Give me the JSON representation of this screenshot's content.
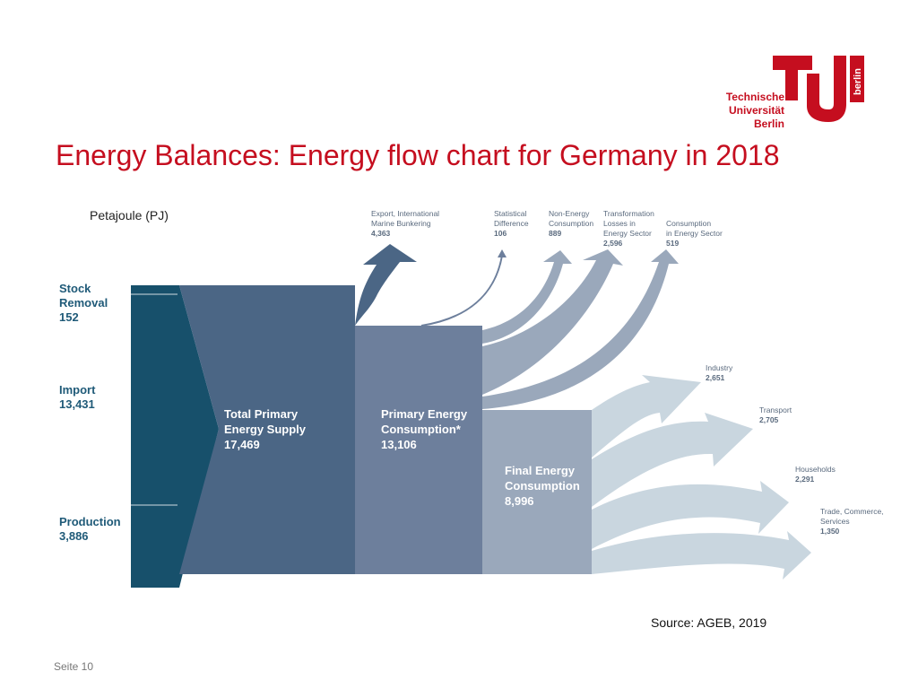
{
  "title": "Energy Balances: Energy flow chart for Germany in 2018",
  "unit": "Petajoule (PJ)",
  "source": "Source: AGEB, 2019",
  "page": "Seite 10",
  "logo": {
    "line1": "Technische",
    "line2": "Universität",
    "line3": "Berlin",
    "word": "berlin"
  },
  "colors": {
    "title": "#c50e1f",
    "dark": "#17506b",
    "block1": "#4b6685",
    "block2": "#6d7f9c",
    "block3": "#9aa8bb",
    "light": "#c9d6df"
  },
  "inputs": [
    {
      "name": "Stock Removal",
      "lines": [
        "Stock",
        "Removal"
      ],
      "value": "152"
    },
    {
      "name": "Import",
      "lines": [
        "Import"
      ],
      "value": "13,431"
    },
    {
      "name": "Production",
      "lines": [
        "Production"
      ],
      "value": "3,886"
    }
  ],
  "blocks": [
    {
      "lines": [
        "Total Primary",
        "Energy Supply"
      ],
      "value": "17,469"
    },
    {
      "lines": [
        "Primary Energy",
        "Consumption*"
      ],
      "value": "13,106"
    },
    {
      "lines": [
        "Final Energy",
        "Consumption"
      ],
      "value": "8,996"
    }
  ],
  "outflows": [
    {
      "lines": [
        "Export, International",
        "Marine Bunkering"
      ],
      "value": "4,363"
    },
    {
      "lines": [
        "Statistical",
        "Difference"
      ],
      "value": "106"
    },
    {
      "lines": [
        "Non-Energy",
        "Consumption"
      ],
      "value": "889"
    },
    {
      "lines": [
        "Transformation",
        "Losses in",
        "Energy Sector"
      ],
      "value": "2,596"
    },
    {
      "lines": [
        "Consumption",
        "in Energy Sector"
      ],
      "value": "519"
    }
  ],
  "sectors": [
    {
      "lines": [
        "Industry"
      ],
      "value": "2,651"
    },
    {
      "lines": [
        "Transport"
      ],
      "value": "2,705"
    },
    {
      "lines": [
        "Households"
      ],
      "value": "2,291"
    },
    {
      "lines": [
        "Trade, Commerce,",
        "Services"
      ],
      "value": "1,350"
    }
  ]
}
